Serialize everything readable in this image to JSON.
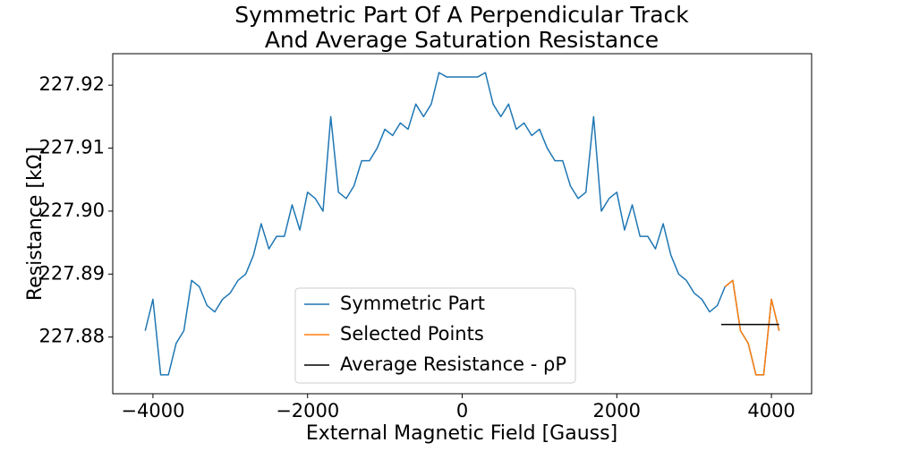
{
  "chart_data": {
    "type": "line",
    "title": [
      "Symmetric Part Of A Perpendicular Track",
      "And Average Saturation Resistance"
    ],
    "x_label": "External Magnetic Field [Gauss]",
    "y_label": "Resistance [kΩ]",
    "xlim": [
      -4520,
      4520
    ],
    "ylim": [
      227.871,
      227.925
    ],
    "xticks": [
      {
        "value": -4000,
        "label": "−4000"
      },
      {
        "value": -2000,
        "label": "−2000"
      },
      0,
      2000,
      4000
    ],
    "yticks": [
      227.88,
      227.89,
      {
        "value": 227.9,
        "label": "227.90"
      },
      227.91,
      227.92
    ],
    "grid": false,
    "legend": "lower center",
    "series": [
      {
        "name": "Symmetric Part",
        "color": "#1f77b4",
        "x": [
          -4100,
          -4000,
          -3900,
          -3800,
          -3700,
          -3600,
          -3500,
          -3400,
          -3300,
          -3200,
          -3100,
          -3000,
          -2900,
          -2800,
          -2700,
          -2600,
          -2500,
          -2400,
          -2300,
          -2200,
          -2100,
          -2000,
          -1900,
          -1800,
          -1700,
          -1600,
          -1500,
          -1400,
          -1300,
          -1200,
          -1100,
          -1000,
          -900,
          -800,
          -700,
          -600,
          -500,
          -400,
          -300,
          -200,
          -100,
          0,
          100,
          200,
          300,
          400,
          500,
          600,
          700,
          800,
          900,
          1000,
          1100,
          1200,
          1300,
          1400,
          1500,
          1600,
          1700,
          1800,
          1900,
          2000,
          2100,
          2200,
          2300,
          2400,
          2500,
          2600,
          2700,
          2800,
          2900,
          3000,
          3100,
          3200,
          3300,
          3400,
          3500,
          3600,
          3700,
          3800,
          3900,
          4000,
          4100
        ],
        "values": [
          227.881,
          227.886,
          227.874,
          227.874,
          227.879,
          227.881,
          227.889,
          227.888,
          227.885,
          227.884,
          227.886,
          227.887,
          227.889,
          227.89,
          227.893,
          227.898,
          227.894,
          227.896,
          227.896,
          227.901,
          227.897,
          227.903,
          227.902,
          227.9,
          227.915,
          227.903,
          227.902,
          227.904,
          227.908,
          227.908,
          227.91,
          227.913,
          227.912,
          227.914,
          227.913,
          227.917,
          227.915,
          227.917,
          227.922,
          227.9213,
          227.9213,
          227.9213,
          227.9213,
          227.9213,
          227.922,
          227.917,
          227.915,
          227.917,
          227.913,
          227.914,
          227.912,
          227.913,
          227.91,
          227.908,
          227.908,
          227.904,
          227.902,
          227.903,
          227.915,
          227.9,
          227.902,
          227.903,
          227.897,
          227.901,
          227.896,
          227.896,
          227.894,
          227.898,
          227.893,
          227.89,
          227.889,
          227.887,
          227.886,
          227.884,
          227.885,
          227.888,
          227.889,
          227.881,
          227.879,
          227.874,
          227.874,
          227.886,
          227.881
        ]
      },
      {
        "name": "Selected Points",
        "color": "#ff7f0e",
        "x": [
          3400,
          3500,
          3600,
          3700,
          3800,
          3900,
          4000,
          4100
        ],
        "values": [
          227.888,
          227.889,
          227.881,
          227.879,
          227.874,
          227.874,
          227.886,
          227.881
        ]
      },
      {
        "name": "Average Resistance - ρP",
        "color": "#000000",
        "x": [
          3350,
          4100
        ],
        "values": [
          227.882,
          227.882
        ]
      }
    ]
  }
}
